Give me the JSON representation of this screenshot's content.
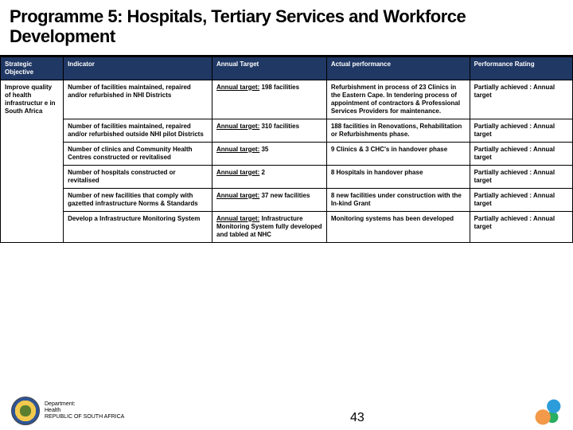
{
  "title": "Programme 5: Hospitals, Tertiary Services and Workforce Development",
  "header_bg": "#203864",
  "columns": [
    "Strategic Objective",
    "Indicator",
    "Annual Target",
    "Actual performance",
    "Performance Rating"
  ],
  "strategic_objective": "Improve quality of health infrastructur e in South Africa",
  "rows": [
    {
      "indicator": "Number of facilities maintained, repaired and/or refurbished in NHI Districts",
      "target_label": "Annual target:",
      "target_value": "198 facilities",
      "actual": "Refurbishment in process of 23 Clinics in the Eastern Cape. In tendering process of appointment of contractors & Professional Services Providers for maintenance.",
      "rating": "Partially achieved : Annual target"
    },
    {
      "indicator": "Number of facilities maintained, repaired and/or refurbished outside NHI pilot Districts",
      "target_label": "Annual target:",
      "target_value": "310 facilities",
      "actual": "188 facilities in Renovations, Rehabilitation or Refurbishments phase.",
      "rating": "Partially achieved : Annual target"
    },
    {
      "indicator": "Number of clinics and Community Health Centres constructed or revitalised",
      "target_label": "Annual target:",
      "target_value": "35",
      "actual": "9 Clinics & 3 CHC's in handover phase",
      "rating": "Partially achieved : Annual target"
    },
    {
      "indicator": "Number of hospitals constructed or revitalised",
      "target_label": "Annual target:",
      "target_value": "2",
      "actual": "8 Hospitals in handover phase",
      "rating": "Partially achieved : Annual target"
    },
    {
      "indicator": "Number of new facilities that comply with gazetted infrastructure Norms & Standards",
      "target_label": "Annual target:",
      "target_value": "37 new facilities",
      "actual": "8 new facilities under construction with the In-kind Grant",
      "rating": "Partially achieved : Annual target"
    },
    {
      "indicator": "Develop a Infrastructure Monitoring System",
      "target_label": "Annual target:",
      "target_value": "Infrastructure Monitoring System fully developed and tabled at NHC",
      "actual": "Monitoring systems has been developed",
      "rating": "Partially achieved : Annual target"
    }
  ],
  "footer": {
    "dept_line1": "Department:",
    "dept_line2": "Health",
    "dept_line3": "REPUBLIC OF SOUTH AFRICA",
    "page_number": "43"
  }
}
